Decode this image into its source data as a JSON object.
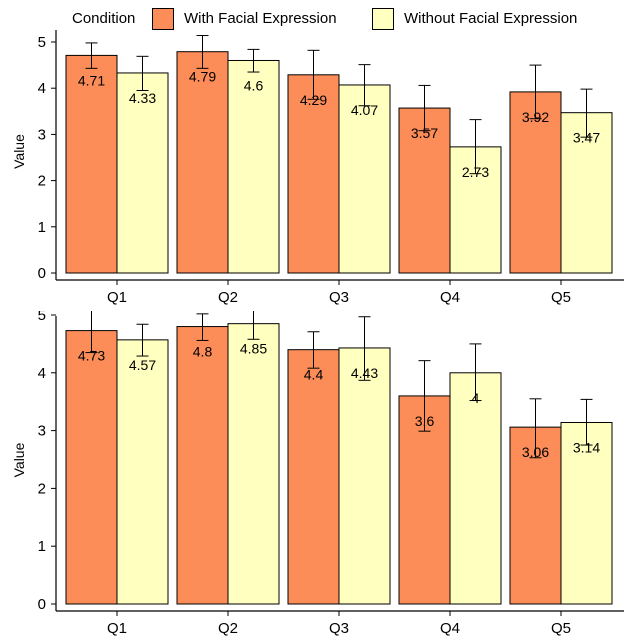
{
  "legend": {
    "title": "Condition",
    "items": [
      {
        "label": "With Facial Expression",
        "color": "#fc8d59"
      },
      {
        "label": "Without Facial Expression",
        "color": "#ffffbf"
      }
    ]
  },
  "chart_data": [
    {
      "type": "bar",
      "categories": [
        "Q1",
        "Q2",
        "Q3",
        "Q4",
        "Q5"
      ],
      "ylabel": "Value",
      "ylim": [
        0,
        5.2
      ],
      "yticks": [
        0,
        1,
        2,
        3,
        4,
        5
      ],
      "series": [
        {
          "name": "With Facial Expression",
          "color": "#fc8d59",
          "values": [
            4.71,
            4.79,
            4.29,
            3.57,
            3.92
          ],
          "labels": [
            "4.71",
            "4.79",
            "4.29",
            "3.57",
            "3.92"
          ],
          "err_low": [
            4.43,
            4.43,
            3.76,
            3.08,
            3.34
          ],
          "err_high": [
            4.98,
            5.14,
            4.82,
            4.06,
            4.5
          ]
        },
        {
          "name": "Without Facial Expression",
          "color": "#ffffbf",
          "values": [
            4.33,
            4.6,
            4.07,
            2.73,
            3.47
          ],
          "labels": [
            "4.33",
            "4.6",
            "4.07",
            "2.73",
            "3.47"
          ],
          "err_low": [
            3.95,
            4.35,
            3.62,
            2.15,
            2.94
          ],
          "err_high": [
            4.69,
            4.84,
            4.51,
            3.32,
            3.98
          ]
        }
      ]
    },
    {
      "type": "bar",
      "categories": [
        "Q1",
        "Q2",
        "Q3",
        "Q4",
        "Q5"
      ],
      "ylabel": "Value",
      "ylim": [
        0,
        5.2
      ],
      "yticks": [
        0,
        1,
        2,
        3,
        4,
        5
      ],
      "series": [
        {
          "name": "With Facial Expression",
          "color": "#fc8d59",
          "values": [
            4.73,
            4.8,
            4.4,
            3.6,
            3.06
          ],
          "labels": [
            "4.73",
            "4.8",
            "4.4",
            "3.6",
            "3.06"
          ],
          "err_low": [
            4.35,
            4.56,
            4.08,
            2.99,
            2.53
          ],
          "err_high": [
            5.11,
            5.02,
            4.71,
            4.21,
            3.55
          ]
        },
        {
          "name": "Without Facial Expression",
          "color": "#ffffbf",
          "values": [
            4.57,
            4.85,
            4.43,
            4.0,
            3.14
          ],
          "labels": [
            "4.57",
            "4.85",
            "4.43",
            "4",
            "3.14"
          ],
          "err_low": [
            4.29,
            4.58,
            3.87,
            3.52,
            2.75
          ],
          "err_high": [
            4.84,
            5.1,
            4.97,
            4.5,
            3.54
          ]
        }
      ]
    }
  ]
}
